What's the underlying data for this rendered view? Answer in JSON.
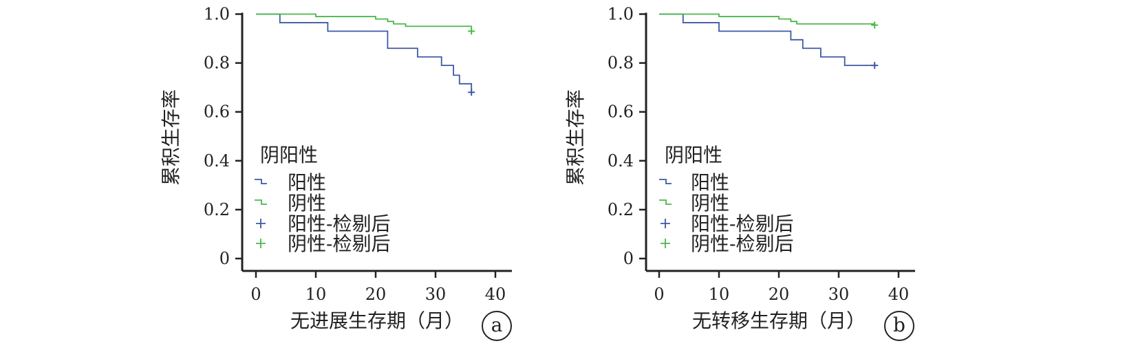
{
  "colors": {
    "positive": "#3e58a6",
    "negative": "#4bb84a",
    "axis": "#222222"
  },
  "chart_data": [
    {
      "type": "line",
      "panel_label": "a",
      "xlabel": "无进展生存期（月）",
      "ylabel": "累积生存率",
      "xlim": [
        0,
        40
      ],
      "ylim": [
        0,
        1.0
      ],
      "x_ticks": [
        0,
        10,
        20,
        30,
        40
      ],
      "x_tick_labels": [
        "0",
        "10",
        "20",
        "30",
        "40"
      ],
      "y_ticks": [
        0,
        0.2,
        0.4,
        0.6,
        0.8,
        1.0
      ],
      "y_tick_labels": [
        "0",
        "0.2",
        "0.4",
        "0.6",
        "0.8",
        "1.0"
      ],
      "legend": {
        "title": "阴阳性",
        "entries": [
          {
            "label": "阳性",
            "symbol": "step",
            "color_key": "positive"
          },
          {
            "label": "阴性",
            "symbol": "step",
            "color_key": "negative"
          },
          {
            "label": "阳性-检剔后",
            "symbol": "cross",
            "color_key": "positive"
          },
          {
            "label": "阴性-检剔后",
            "symbol": "cross",
            "color_key": "negative"
          }
        ]
      },
      "series": [
        {
          "name": "阳性",
          "color_key": "positive",
          "steps": [
            [
              0,
              1.0
            ],
            [
              4,
              0.965
            ],
            [
              12,
              0.93
            ],
            [
              22,
              0.86
            ],
            [
              27,
              0.825
            ],
            [
              31,
              0.79
            ],
            [
              33,
              0.75
            ],
            [
              34,
              0.715
            ],
            [
              36,
              0.68
            ]
          ],
          "censored": [
            [
              36,
              0.68
            ]
          ]
        },
        {
          "name": "阴性",
          "color_key": "negative",
          "steps": [
            [
              0,
              1.0
            ],
            [
              10,
              0.99
            ],
            [
              20,
              0.98
            ],
            [
              22,
              0.97
            ],
            [
              23,
              0.96
            ],
            [
              25,
              0.95
            ],
            [
              36,
              0.93
            ]
          ],
          "censored": [
            [
              36,
              0.93
            ]
          ]
        }
      ]
    },
    {
      "type": "line",
      "panel_label": "b",
      "xlabel": "无转移生存期（月）",
      "ylabel": "累积生存率",
      "xlim": [
        0,
        40
      ],
      "ylim": [
        0,
        1.0
      ],
      "x_ticks": [
        0,
        10,
        20,
        30,
        40
      ],
      "x_tick_labels": [
        "0",
        "10",
        "20",
        "30",
        "40"
      ],
      "y_ticks": [
        0,
        0.2,
        0.4,
        0.6,
        0.8,
        1.0
      ],
      "y_tick_labels": [
        "0",
        "0.2",
        "0.4",
        "0.6",
        "0.8",
        "1.0"
      ],
      "legend": {
        "title": "阴阳性",
        "entries": [
          {
            "label": "阳性",
            "symbol": "step",
            "color_key": "positive"
          },
          {
            "label": "阴性",
            "symbol": "step",
            "color_key": "negative"
          },
          {
            "label": "阳性-检剔后",
            "symbol": "cross",
            "color_key": "positive"
          },
          {
            "label": "阴性-检剔后",
            "symbol": "cross",
            "color_key": "negative"
          }
        ]
      },
      "series": [
        {
          "name": "阳性",
          "color_key": "positive",
          "steps": [
            [
              0,
              1.0
            ],
            [
              4,
              0.965
            ],
            [
              10,
              0.93
            ],
            [
              22,
              0.895
            ],
            [
              24,
              0.86
            ],
            [
              27,
              0.825
            ],
            [
              31,
              0.79
            ],
            [
              36,
              0.79
            ]
          ],
          "censored": [
            [
              36,
              0.79
            ]
          ]
        },
        {
          "name": "阴性",
          "color_key": "negative",
          "steps": [
            [
              0,
              1.0
            ],
            [
              10,
              0.99
            ],
            [
              20,
              0.98
            ],
            [
              22,
              0.97
            ],
            [
              23,
              0.96
            ],
            [
              36,
              0.96
            ]
          ],
          "censored": [
            [
              36,
              0.955
            ]
          ]
        }
      ]
    }
  ]
}
